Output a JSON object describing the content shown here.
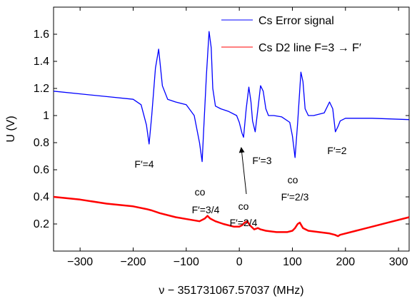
{
  "chart_data": {
    "type": "line",
    "xlabel": "ν − 351731067.57037 (MHz)",
    "ylabel": "U (V)",
    "xlim": [
      -350,
      320
    ],
    "ylim": [
      0,
      1.8
    ],
    "xticks": [
      -300,
      -200,
      -100,
      0,
      100,
      200,
      300
    ],
    "yticks": [
      0.2,
      0.4,
      0.6,
      0.8,
      1.0,
      1.2,
      1.4,
      1.6
    ],
    "xtick_labels": [
      "−300",
      "−200",
      "−100",
      "0",
      "100",
      "200",
      "300"
    ],
    "ytick_labels": [
      "0.2",
      "0.4",
      "0.6",
      "0.8",
      "1",
      "1.2",
      "1.4",
      "1.6"
    ],
    "grid": false,
    "legend_position": "top-right",
    "series": [
      {
        "name": "Cs Error signal",
        "color": "#0000ff",
        "x": [
          -350,
          -300,
          -250,
          -200,
          -185,
          -175,
          -170,
          -165,
          -158,
          -152,
          -145,
          -135,
          -120,
          -100,
          -85,
          -75,
          -70,
          -67,
          -62,
          -57,
          -53,
          -50,
          -45,
          -35,
          -20,
          -5,
          0,
          5,
          8,
          13,
          18,
          22,
          25,
          30,
          35,
          40,
          45,
          50,
          55,
          65,
          80,
          95,
          100,
          105,
          110,
          116,
          120,
          124,
          130,
          140,
          160,
          170,
          176,
          181,
          186,
          190,
          200,
          250,
          320
        ],
        "y": [
          1.18,
          1.16,
          1.14,
          1.12,
          1.08,
          0.93,
          0.79,
          1.0,
          1.35,
          1.49,
          1.22,
          1.12,
          1.1,
          1.08,
          1.0,
          0.8,
          0.66,
          0.9,
          1.3,
          1.62,
          1.5,
          1.2,
          1.07,
          1.05,
          1.03,
          1.0,
          0.95,
          0.87,
          0.84,
          1.05,
          1.21,
          1.1,
          0.96,
          0.88,
          1.05,
          1.22,
          1.18,
          1.05,
          1.0,
          1.0,
          0.99,
          0.95,
          0.85,
          0.69,
          0.95,
          1.32,
          1.25,
          1.05,
          1.0,
          1.0,
          1.02,
          1.1,
          1.05,
          0.88,
          0.92,
          0.96,
          0.98,
          0.98,
          0.97
        ]
      },
      {
        "name": "Cs D2 line F=3 → F′",
        "color": "#ff0000",
        "x": [
          -350,
          -300,
          -250,
          -200,
          -175,
          -165,
          -150,
          -120,
          -90,
          -75,
          -65,
          -60,
          -55,
          -45,
          -30,
          -10,
          0,
          5,
          10,
          15,
          20,
          28,
          35,
          40,
          50,
          70,
          90,
          100,
          105,
          110,
          114,
          120,
          130,
          150,
          170,
          180,
          186,
          190,
          200,
          220,
          250,
          280,
          320
        ],
        "y": [
          0.4,
          0.38,
          0.35,
          0.33,
          0.31,
          0.3,
          0.28,
          0.25,
          0.23,
          0.22,
          0.24,
          0.26,
          0.24,
          0.22,
          0.2,
          0.18,
          0.18,
          0.19,
          0.21,
          0.22,
          0.19,
          0.16,
          0.17,
          0.16,
          0.15,
          0.14,
          0.14,
          0.15,
          0.17,
          0.2,
          0.21,
          0.17,
          0.15,
          0.14,
          0.13,
          0.12,
          0.11,
          0.12,
          0.13,
          0.15,
          0.18,
          0.21,
          0.25
        ]
      }
    ],
    "annotations": [
      {
        "label": "F′=4",
        "x": -170,
        "y": 0.79
      },
      {
        "label": "co",
        "x": -67,
        "y": 0.66
      },
      {
        "label": "F′=3/4",
        "x": -67,
        "y": 0.66
      },
      {
        "label": "co",
        "x": 8,
        "y": 0.84
      },
      {
        "label": "F′=2/4",
        "x": 8,
        "y": 0.84
      },
      {
        "label": "F′=3",
        "x": 30,
        "y": 0.88
      },
      {
        "label": "co",
        "x": 105,
        "y": 0.69
      },
      {
        "label": "F′=2/3",
        "x": 105,
        "y": 0.69
      },
      {
        "label": "F′=2",
        "x": 181,
        "y": 0.88
      }
    ]
  }
}
